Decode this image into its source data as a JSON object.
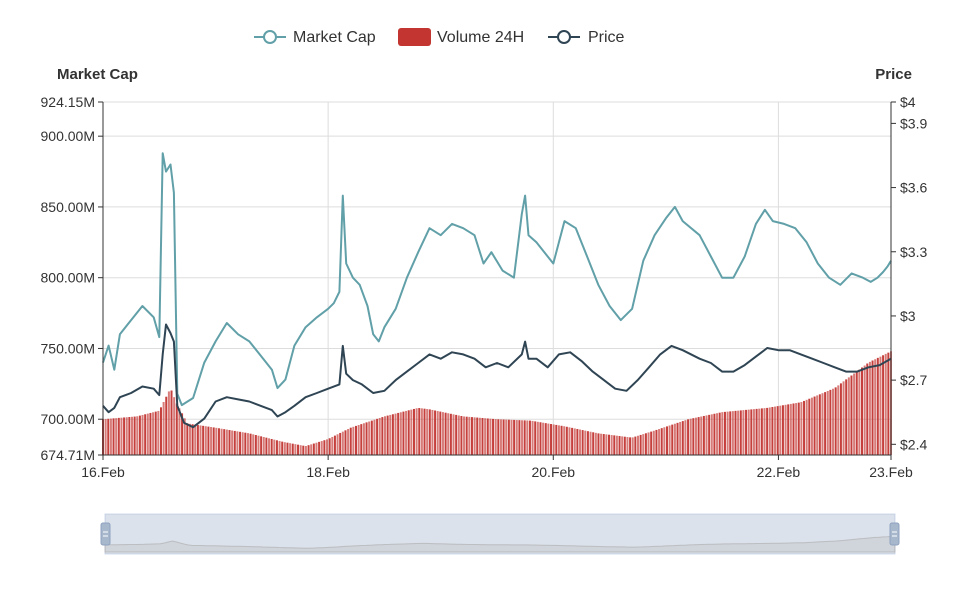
{
  "legend": [
    {
      "label": "Market Cap",
      "color": "#61a0a8",
      "style": "line-circle"
    },
    {
      "label": "Volume 24H",
      "color": "#c23531",
      "style": "rect"
    },
    {
      "label": "Price",
      "color": "#2f4554",
      "style": "line-circle"
    }
  ],
  "chart_data": {
    "type": "line",
    "x_start": "2025-02-16",
    "x_end": "2025-02-23",
    "x_ticks": [
      {
        "date": "2025-02-16",
        "label": "16.Feb"
      },
      {
        "date": "2025-02-18",
        "label": "18.Feb"
      },
      {
        "date": "2025-02-20",
        "label": "20.Feb"
      },
      {
        "date": "2025-02-22",
        "label": "22.Feb"
      },
      {
        "date": "2025-02-23",
        "label": "23.Feb"
      }
    ],
    "y_left": {
      "title": "Market Cap",
      "min": 674.71,
      "max": 924.15,
      "ticks": [
        {
          "v": 924.15,
          "label": "924.15M"
        },
        {
          "v": 900,
          "label": "900.00M"
        },
        {
          "v": 850,
          "label": "850.00M"
        },
        {
          "v": 800,
          "label": "800.00M"
        },
        {
          "v": 750,
          "label": "750.00M"
        },
        {
          "v": 700,
          "label": "700.00M"
        },
        {
          "v": 674.71,
          "label": "674.71M"
        }
      ]
    },
    "y_right": {
      "title": "Price",
      "min": 2.35,
      "max": 4.0,
      "ticks": [
        {
          "v": 4.0,
          "label": "$4"
        },
        {
          "v": 3.9,
          "label": "$3.9"
        },
        {
          "v": 3.6,
          "label": "$3.6"
        },
        {
          "v": 3.3,
          "label": "$3.3"
        },
        {
          "v": 3.0,
          "label": "$3"
        },
        {
          "v": 2.7,
          "label": "$2.7"
        },
        {
          "v": 2.4,
          "label": "$2.4"
        }
      ]
    },
    "grid": true,
    "series": [
      {
        "name": "Market Cap",
        "axis": "left",
        "color": "#61a0a8",
        "points": [
          [
            0,
            740
          ],
          [
            0.05,
            752
          ],
          [
            0.1,
            735
          ],
          [
            0.15,
            760
          ],
          [
            0.25,
            770
          ],
          [
            0.35,
            780
          ],
          [
            0.45,
            772
          ],
          [
            0.5,
            758
          ],
          [
            0.53,
            888
          ],
          [
            0.56,
            875
          ],
          [
            0.6,
            880
          ],
          [
            0.63,
            860
          ],
          [
            0.66,
            718
          ],
          [
            0.7,
            710
          ],
          [
            0.8,
            715
          ],
          [
            0.9,
            740
          ],
          [
            1.0,
            755
          ],
          [
            1.1,
            768
          ],
          [
            1.2,
            760
          ],
          [
            1.3,
            755
          ],
          [
            1.4,
            745
          ],
          [
            1.5,
            735
          ],
          [
            1.55,
            722
          ],
          [
            1.62,
            728
          ],
          [
            1.7,
            752
          ],
          [
            1.8,
            765
          ],
          [
            1.9,
            772
          ],
          [
            2.0,
            778
          ],
          [
            2.05,
            782
          ],
          [
            2.1,
            790
          ],
          [
            2.13,
            858
          ],
          [
            2.16,
            810
          ],
          [
            2.22,
            800
          ],
          [
            2.28,
            795
          ],
          [
            2.35,
            780
          ],
          [
            2.4,
            760
          ],
          [
            2.45,
            755
          ],
          [
            2.5,
            765
          ],
          [
            2.6,
            778
          ],
          [
            2.7,
            800
          ],
          [
            2.8,
            818
          ],
          [
            2.9,
            835
          ],
          [
            3.0,
            830
          ],
          [
            3.1,
            838
          ],
          [
            3.2,
            835
          ],
          [
            3.3,
            830
          ],
          [
            3.38,
            810
          ],
          [
            3.45,
            818
          ],
          [
            3.55,
            805
          ],
          [
            3.65,
            800
          ],
          [
            3.72,
            845
          ],
          [
            3.75,
            858
          ],
          [
            3.78,
            830
          ],
          [
            3.85,
            825
          ],
          [
            3.95,
            815
          ],
          [
            4.0,
            810
          ],
          [
            4.1,
            840
          ],
          [
            4.2,
            835
          ],
          [
            4.3,
            815
          ],
          [
            4.4,
            795
          ],
          [
            4.5,
            780
          ],
          [
            4.6,
            770
          ],
          [
            4.7,
            778
          ],
          [
            4.8,
            812
          ],
          [
            4.9,
            830
          ],
          [
            5.0,
            842
          ],
          [
            5.08,
            850
          ],
          [
            5.15,
            840
          ],
          [
            5.3,
            830
          ],
          [
            5.4,
            815
          ],
          [
            5.5,
            800
          ],
          [
            5.6,
            800
          ],
          [
            5.7,
            815
          ],
          [
            5.8,
            838
          ],
          [
            5.88,
            848
          ],
          [
            5.95,
            840
          ],
          [
            6.05,
            838
          ],
          [
            6.15,
            835
          ],
          [
            6.25,
            825
          ],
          [
            6.35,
            810
          ],
          [
            6.45,
            800
          ],
          [
            6.55,
            795
          ],
          [
            6.65,
            803
          ],
          [
            6.75,
            800
          ],
          [
            6.82,
            797
          ],
          [
            6.88,
            800
          ],
          [
            6.93,
            804
          ],
          [
            6.97,
            808
          ],
          [
            7.0,
            812
          ]
        ]
      },
      {
        "name": "Price",
        "axis": "right",
        "color": "#2f4554",
        "points": [
          [
            0,
            2.58
          ],
          [
            0.05,
            2.55
          ],
          [
            0.1,
            2.57
          ],
          [
            0.15,
            2.62
          ],
          [
            0.25,
            2.64
          ],
          [
            0.35,
            2.67
          ],
          [
            0.45,
            2.66
          ],
          [
            0.5,
            2.63
          ],
          [
            0.53,
            2.82
          ],
          [
            0.56,
            2.96
          ],
          [
            0.6,
            2.92
          ],
          [
            0.63,
            2.88
          ],
          [
            0.66,
            2.58
          ],
          [
            0.72,
            2.5
          ],
          [
            0.8,
            2.48
          ],
          [
            0.9,
            2.52
          ],
          [
            1.0,
            2.6
          ],
          [
            1.1,
            2.62
          ],
          [
            1.2,
            2.61
          ],
          [
            1.3,
            2.6
          ],
          [
            1.4,
            2.58
          ],
          [
            1.5,
            2.56
          ],
          [
            1.55,
            2.53
          ],
          [
            1.62,
            2.55
          ],
          [
            1.7,
            2.58
          ],
          [
            1.8,
            2.62
          ],
          [
            1.9,
            2.64
          ],
          [
            2.0,
            2.66
          ],
          [
            2.1,
            2.68
          ],
          [
            2.13,
            2.86
          ],
          [
            2.16,
            2.73
          ],
          [
            2.22,
            2.7
          ],
          [
            2.3,
            2.68
          ],
          [
            2.4,
            2.64
          ],
          [
            2.5,
            2.65
          ],
          [
            2.6,
            2.7
          ],
          [
            2.7,
            2.74
          ],
          [
            2.8,
            2.78
          ],
          [
            2.9,
            2.82
          ],
          [
            3.0,
            2.8
          ],
          [
            3.1,
            2.83
          ],
          [
            3.2,
            2.82
          ],
          [
            3.3,
            2.8
          ],
          [
            3.4,
            2.76
          ],
          [
            3.5,
            2.78
          ],
          [
            3.6,
            2.76
          ],
          [
            3.72,
            2.82
          ],
          [
            3.75,
            2.88
          ],
          [
            3.78,
            2.8
          ],
          [
            3.85,
            2.8
          ],
          [
            3.95,
            2.76
          ],
          [
            4.05,
            2.82
          ],
          [
            4.15,
            2.83
          ],
          [
            4.25,
            2.79
          ],
          [
            4.35,
            2.74
          ],
          [
            4.45,
            2.7
          ],
          [
            4.55,
            2.66
          ],
          [
            4.65,
            2.65
          ],
          [
            4.75,
            2.7
          ],
          [
            4.85,
            2.76
          ],
          [
            4.95,
            2.82
          ],
          [
            5.05,
            2.86
          ],
          [
            5.15,
            2.84
          ],
          [
            5.3,
            2.8
          ],
          [
            5.4,
            2.78
          ],
          [
            5.5,
            2.74
          ],
          [
            5.6,
            2.74
          ],
          [
            5.7,
            2.77
          ],
          [
            5.8,
            2.81
          ],
          [
            5.9,
            2.85
          ],
          [
            6.0,
            2.84
          ],
          [
            6.1,
            2.84
          ],
          [
            6.2,
            2.82
          ],
          [
            6.3,
            2.8
          ],
          [
            6.4,
            2.78
          ],
          [
            6.5,
            2.76
          ],
          [
            6.6,
            2.74
          ],
          [
            6.7,
            2.74
          ],
          [
            6.8,
            2.76
          ],
          [
            6.9,
            2.77
          ],
          [
            7.0,
            2.8
          ]
        ]
      },
      {
        "name": "Volume 24H",
        "axis": "left",
        "color": "#c23531",
        "style": "bars",
        "points": [
          [
            0,
            700
          ],
          [
            0.3,
            702
          ],
          [
            0.5,
            706
          ],
          [
            0.6,
            722
          ],
          [
            0.65,
            712
          ],
          [
            0.75,
            697
          ],
          [
            1.0,
            694
          ],
          [
            1.3,
            690
          ],
          [
            1.6,
            684
          ],
          [
            1.8,
            681
          ],
          [
            2.0,
            686
          ],
          [
            2.2,
            694
          ],
          [
            2.5,
            702
          ],
          [
            2.8,
            708
          ],
          [
            2.9,
            707
          ],
          [
            3.2,
            702
          ],
          [
            3.5,
            700
          ],
          [
            3.8,
            699
          ],
          [
            4.1,
            695
          ],
          [
            4.4,
            690
          ],
          [
            4.7,
            687
          ],
          [
            4.9,
            692
          ],
          [
            5.2,
            700
          ],
          [
            5.5,
            705
          ],
          [
            5.9,
            708
          ],
          [
            6.2,
            712
          ],
          [
            6.5,
            722
          ],
          [
            6.8,
            740
          ],
          [
            7.0,
            748
          ]
        ]
      }
    ]
  }
}
